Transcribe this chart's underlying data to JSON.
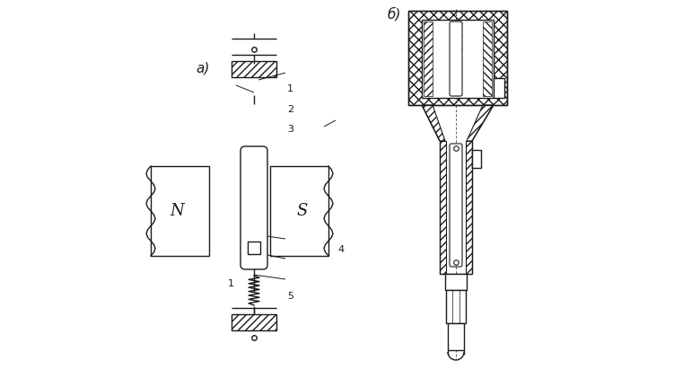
{
  "bg_color": "#ffffff",
  "line_color": "#1a1a1a",
  "label_a": "а)",
  "label_b": "б)",
  "figsize": [
    7.8,
    4.11
  ],
  "dpi": 100
}
